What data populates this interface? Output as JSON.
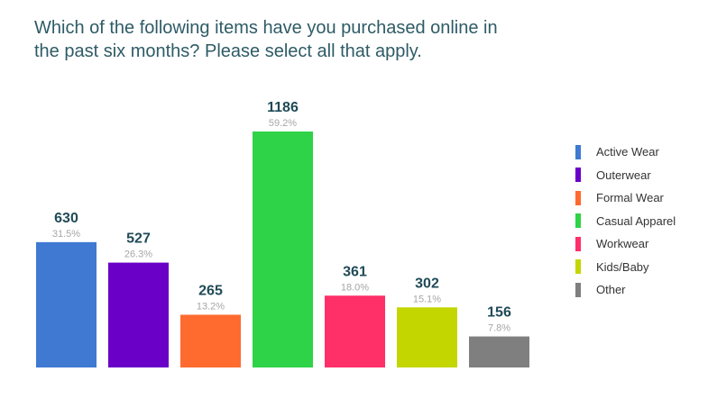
{
  "title_lines": [
    "Which of the following items have you purchased online in",
    "the past six months? Please select all that apply."
  ],
  "chart_data": {
    "type": "bar",
    "title": "Which of the following items have you purchased online in the past six months? Please select all that apply.",
    "categories": [
      "Active Wear",
      "Outerwear",
      "Formal Wear",
      "Casual Apparel",
      "Workwear",
      "Kids/Baby",
      "Other"
    ],
    "values": [
      630,
      527,
      265,
      1186,
      361,
      302,
      156
    ],
    "percent_labels": [
      "31.5%",
      "26.3%",
      "13.2%",
      "59.2%",
      "18.0%",
      "15.1%",
      "7.8%"
    ],
    "colors": [
      "#3f79d2",
      "#6a00c8",
      "#ff6a2f",
      "#2ed347",
      "#ff2f68",
      "#c4d600",
      "#7f7f7f"
    ],
    "ylim": [
      0,
      1186
    ],
    "grid": false,
    "legend_position": "right"
  }
}
